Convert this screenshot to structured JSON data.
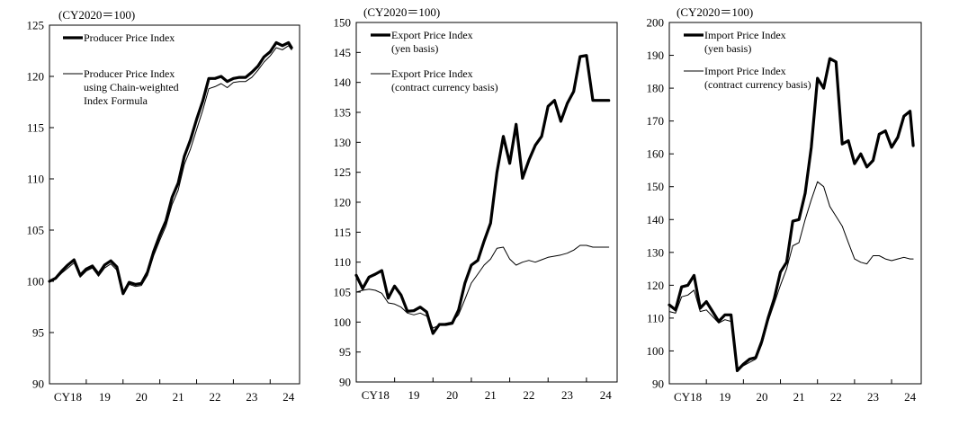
{
  "chart_data": [
    {
      "type": "line",
      "title": "",
      "unit_label": "(CY2020＝100)",
      "ylim": [
        90,
        125
      ],
      "yticks": [
        90,
        95,
        100,
        105,
        110,
        115,
        120,
        125
      ],
      "xlim": [
        2018.0,
        2024.8
      ],
      "xticks": [
        {
          "label": "CY18",
          "x": 2018.5
        },
        {
          "label": "19",
          "x": 2019.5
        },
        {
          "label": "20",
          "x": 2020.5
        },
        {
          "label": "21",
          "x": 2021.5
        },
        {
          "label": "22",
          "x": 2022.5
        },
        {
          "label": "23",
          "x": 2023.5
        },
        {
          "label": "24",
          "x": 2024.5
        }
      ],
      "xlabel": "",
      "ylabel": "",
      "grid": false,
      "legend_position": "top-left",
      "series": [
        {
          "name_lines": [
            "Producer Price Index"
          ],
          "style": "thick",
          "x": [
            2018.0,
            2018.167,
            2018.333,
            2018.5,
            2018.667,
            2018.833,
            2019.0,
            2019.167,
            2019.333,
            2019.5,
            2019.667,
            2019.833,
            2020.0,
            2020.167,
            2020.333,
            2020.5,
            2020.667,
            2020.833,
            2021.0,
            2021.167,
            2021.333,
            2021.5,
            2021.667,
            2021.833,
            2022.0,
            2022.167,
            2022.333,
            2022.5,
            2022.667,
            2022.833,
            2023.0,
            2023.167,
            2023.333,
            2023.5,
            2023.667,
            2023.833,
            2024.0,
            2024.167,
            2024.333,
            2024.5,
            2024.583
          ],
          "values": [
            100.0,
            100.3,
            101.0,
            101.6,
            102.1,
            100.6,
            101.2,
            101.5,
            100.7,
            101.6,
            102.0,
            101.4,
            98.8,
            99.9,
            99.7,
            99.8,
            100.9,
            102.9,
            104.5,
            105.9,
            108.2,
            109.6,
            112.2,
            113.8,
            115.8,
            117.6,
            119.8,
            119.8,
            120.0,
            119.5,
            119.8,
            119.9,
            119.9,
            120.4,
            121.0,
            121.9,
            122.4,
            123.3,
            123.0,
            123.3,
            122.8
          ]
        },
        {
          "name_lines": [
            "Producer Price Index",
            "using Chain-weighted",
            "Index Formula"
          ],
          "style": "thin",
          "x": [
            2018.0,
            2018.167,
            2018.333,
            2018.5,
            2018.667,
            2018.833,
            2019.0,
            2019.167,
            2019.333,
            2019.5,
            2019.667,
            2019.833,
            2020.0,
            2020.167,
            2020.333,
            2020.5,
            2020.667,
            2020.833,
            2021.0,
            2021.167,
            2021.333,
            2021.5,
            2021.667,
            2021.833,
            2022.0,
            2022.167,
            2022.333,
            2022.5,
            2022.667,
            2022.833,
            2023.0,
            2023.167,
            2023.333,
            2023.5,
            2023.667,
            2023.833,
            2024.0,
            2024.167,
            2024.333,
            2024.5,
            2024.583
          ],
          "values": [
            100.0,
            100.2,
            100.8,
            101.3,
            101.8,
            100.4,
            101.0,
            101.3,
            100.5,
            101.3,
            101.7,
            101.1,
            98.7,
            99.7,
            99.5,
            99.6,
            100.6,
            102.5,
            104.0,
            105.4,
            107.5,
            108.9,
            111.4,
            112.9,
            114.8,
            116.7,
            118.8,
            119.0,
            119.3,
            118.9,
            119.4,
            119.5,
            119.5,
            119.9,
            120.6,
            121.4,
            122.0,
            122.8,
            122.6,
            123.0,
            122.6
          ]
        }
      ]
    },
    {
      "type": "line",
      "title": "",
      "unit_label": "(CY2020＝100)",
      "ylim": [
        90,
        150
      ],
      "yticks": [
        90,
        95,
        100,
        105,
        110,
        115,
        120,
        125,
        130,
        135,
        140,
        145,
        150
      ],
      "xlim": [
        2018.0,
        2024.8
      ],
      "xticks": [
        {
          "label": "CY18",
          "x": 2018.5
        },
        {
          "label": "19",
          "x": 2019.5
        },
        {
          "label": "20",
          "x": 2020.5
        },
        {
          "label": "21",
          "x": 2021.5
        },
        {
          "label": "22",
          "x": 2022.5
        },
        {
          "label": "23",
          "x": 2023.5
        },
        {
          "label": "24",
          "x": 2024.5
        }
      ],
      "xlabel": "",
      "ylabel": "",
      "grid": false,
      "legend_position": "top-left",
      "series": [
        {
          "name_lines": [
            "Export Price Index",
            "(yen basis)"
          ],
          "style": "thick",
          "x": [
            2018.0,
            2018.167,
            2018.333,
            2018.5,
            2018.667,
            2018.833,
            2019.0,
            2019.167,
            2019.333,
            2019.5,
            2019.667,
            2019.833,
            2020.0,
            2020.167,
            2020.333,
            2020.5,
            2020.667,
            2020.833,
            2021.0,
            2021.167,
            2021.333,
            2021.5,
            2021.667,
            2021.833,
            2022.0,
            2022.167,
            2022.333,
            2022.5,
            2022.667,
            2022.833,
            2023.0,
            2023.167,
            2023.333,
            2023.5,
            2023.667,
            2023.833,
            2024.0,
            2024.167,
            2024.333,
            2024.5,
            2024.583
          ],
          "values": [
            107.8,
            105.6,
            107.5,
            108.0,
            108.6,
            104.0,
            106.0,
            104.5,
            101.8,
            101.9,
            102.5,
            101.7,
            98.1,
            99.6,
            99.6,
            99.8,
            102.0,
            106.5,
            109.5,
            110.3,
            113.5,
            116.5,
            125.0,
            131.0,
            126.5,
            133.0,
            124.0,
            127.0,
            129.5,
            131.0,
            136.0,
            137.0,
            133.5,
            136.5,
            138.5,
            144.3,
            144.5,
            137.0,
            137.0,
            137.0,
            137.0
          ]
        },
        {
          "name_lines": [
            "Export Price Index",
            "(contract currency basis)"
          ],
          "style": "thin",
          "x": [
            2018.0,
            2018.167,
            2018.333,
            2018.5,
            2018.667,
            2018.833,
            2019.0,
            2019.167,
            2019.333,
            2019.5,
            2019.667,
            2019.833,
            2020.0,
            2020.167,
            2020.333,
            2020.5,
            2020.667,
            2020.833,
            2021.0,
            2021.167,
            2021.333,
            2021.5,
            2021.667,
            2021.833,
            2022.0,
            2022.167,
            2022.333,
            2022.5,
            2022.667,
            2022.833,
            2023.0,
            2023.167,
            2023.333,
            2023.5,
            2023.667,
            2023.833,
            2024.0,
            2024.167,
            2024.333,
            2024.5,
            2024.583
          ],
          "values": [
            105.0,
            105.3,
            105.5,
            105.3,
            104.8,
            103.2,
            103.0,
            102.5,
            101.5,
            101.2,
            101.5,
            101.0,
            99.0,
            99.5,
            99.8,
            100.0,
            101.2,
            103.8,
            106.5,
            108.0,
            109.5,
            110.5,
            112.3,
            112.5,
            110.5,
            109.5,
            110.0,
            110.3,
            110.0,
            110.4,
            110.8,
            111.0,
            111.2,
            111.5,
            112.0,
            112.8,
            112.8,
            112.5,
            112.5,
            112.5,
            112.5
          ]
        }
      ]
    },
    {
      "type": "line",
      "title": "",
      "unit_label": "(CY2020＝100)",
      "ylim": [
        90,
        200
      ],
      "yticks": [
        90,
        100,
        110,
        120,
        130,
        140,
        150,
        160,
        170,
        180,
        190,
        200
      ],
      "xlim": [
        2018.0,
        2024.8
      ],
      "xticks": [
        {
          "label": "CY18",
          "x": 2018.5
        },
        {
          "label": "19",
          "x": 2019.5
        },
        {
          "label": "20",
          "x": 2020.5
        },
        {
          "label": "21",
          "x": 2021.5
        },
        {
          "label": "22",
          "x": 2022.5
        },
        {
          "label": "23",
          "x": 2023.5
        },
        {
          "label": "24",
          "x": 2024.5
        }
      ],
      "xlabel": "",
      "ylabel": "",
      "grid": false,
      "legend_position": "top-left",
      "series": [
        {
          "name_lines": [
            "Import Price Index",
            "(yen basis)"
          ],
          "style": "thick",
          "x": [
            2018.0,
            2018.167,
            2018.333,
            2018.5,
            2018.667,
            2018.833,
            2019.0,
            2019.167,
            2019.333,
            2019.5,
            2019.667,
            2019.833,
            2020.0,
            2020.167,
            2020.333,
            2020.5,
            2020.667,
            2020.833,
            2021.0,
            2021.167,
            2021.333,
            2021.5,
            2021.667,
            2021.833,
            2022.0,
            2022.167,
            2022.333,
            2022.5,
            2022.667,
            2022.833,
            2023.0,
            2023.167,
            2023.333,
            2023.5,
            2023.667,
            2023.833,
            2024.0,
            2024.167,
            2024.333,
            2024.5,
            2024.583
          ],
          "values": [
            114.0,
            112.5,
            119.5,
            120.0,
            123.0,
            113.0,
            115.0,
            112.0,
            109.0,
            111.0,
            111.0,
            94.0,
            96.0,
            97.5,
            98.0,
            103.0,
            110.0,
            116.0,
            124.0,
            127.0,
            139.5,
            140.0,
            148.0,
            162.0,
            183.0,
            180.0,
            189.0,
            188.0,
            163.0,
            164.0,
            157.0,
            160.0,
            156.0,
            158.0,
            166.0,
            167.0,
            162.0,
            165.0,
            171.5,
            173.0,
            162.5
          ]
        },
        {
          "name_lines": [
            "Import Price Index",
            "(contract currency basis)"
          ],
          "style": "thin",
          "x": [
            2018.0,
            2018.167,
            2018.333,
            2018.5,
            2018.667,
            2018.833,
            2019.0,
            2019.167,
            2019.333,
            2019.5,
            2019.667,
            2019.833,
            2020.0,
            2020.167,
            2020.333,
            2020.5,
            2020.667,
            2020.833,
            2021.0,
            2021.167,
            2021.333,
            2021.5,
            2021.667,
            2021.833,
            2022.0,
            2022.167,
            2022.333,
            2022.5,
            2022.667,
            2022.833,
            2023.0,
            2023.167,
            2023.333,
            2023.5,
            2023.667,
            2023.833,
            2024.0,
            2024.167,
            2024.333,
            2024.5,
            2024.583
          ],
          "values": [
            112.0,
            111.5,
            116.5,
            117.0,
            118.5,
            112.0,
            112.5,
            110.5,
            108.5,
            109.5,
            109.0,
            94.0,
            95.5,
            96.5,
            97.5,
            102.0,
            109.0,
            114.5,
            120.0,
            125.0,
            132.0,
            133.0,
            140.0,
            146.0,
            151.5,
            150.0,
            144.0,
            141.0,
            138.0,
            133.0,
            128.0,
            127.0,
            126.5,
            129.0,
            129.0,
            128.0,
            127.5,
            128.0,
            128.5,
            128.0,
            128.0
          ]
        }
      ]
    }
  ]
}
